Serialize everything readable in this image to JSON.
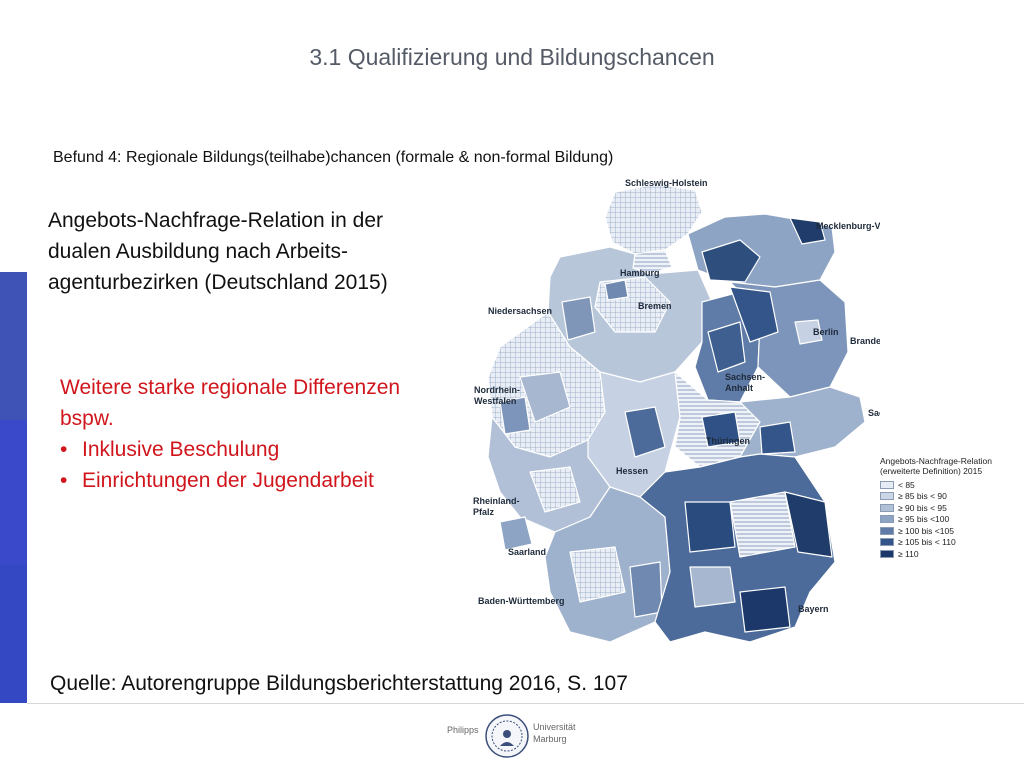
{
  "slide": {
    "title": "3.1 Qualifizierung und Bildungschancen",
    "finding": "Befund 4: Regionale Bildungs(teilhabe)chancen (formale & non-formal Bildung)",
    "description": [
      "Angebots-Nachfrage-Relation in der",
      "dualen  Ausbildung nach Arbeits-",
      "agenturbezirken  (Deutschland 2015)"
    ],
    "note": {
      "line1": "Weitere starke regionale Differenzen",
      "line2": "bspw.",
      "bullets": [
        "Inklusive Beschulung",
        "Einrichtungen der Jugendarbeit"
      ]
    },
    "source": "Quelle: Autorengruppe Bildungsberichterstattung 2016, S. 107"
  },
  "map": {
    "labels": [
      "Schleswig-Holstein",
      "Mecklenburg-Vorpommern",
      "Hamburg",
      "Niedersachsen",
      "Bremen",
      "Berlin",
      "Brandenburg",
      "Sachsen-",
      "Anhalt",
      "Nordrhein-",
      "Westfalen",
      "Sachsen",
      "Thüringen",
      "Hessen",
      "Rheinland-",
      "Pfalz",
      "Saarland",
      "Baden-Württemberg",
      "Bayern"
    ]
  },
  "legend": {
    "title": [
      "Angebots-Nachfrage-Relation",
      "(erweiterte Definition) 2015"
    ],
    "items": [
      "<  85",
      "≥  85  bis <  90",
      "≥  90  bis <  95",
      "≥  95  bis <100",
      "≥ 100  bis <105",
      "≥ 105  bis < 110",
      "≥ 110"
    ],
    "colors": [
      "#e6ecf4",
      "#cbd7e6",
      "#b0c0d6",
      "#8ea4c4",
      "#5f7ba7",
      "#34558a",
      "#1c386a"
    ]
  },
  "logo": {
    "word1": "Philipps",
    "word2": "Universität",
    "word3": "Marburg"
  },
  "colors": {
    "accent_bar": "#3f52b5",
    "highlight_text": "#d0161c",
    "title_text": "#555b66"
  }
}
